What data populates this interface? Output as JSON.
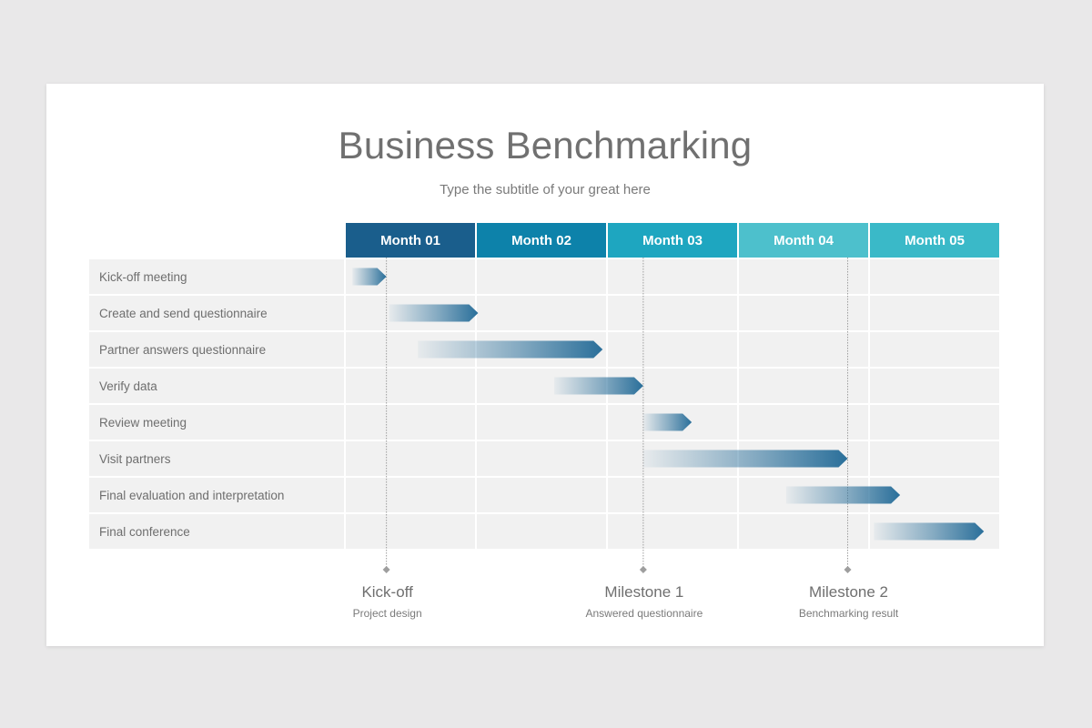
{
  "page": {
    "title": "Business Benchmarking",
    "subtitle": "Type the subtitle of your great here"
  },
  "colors": {
    "background": "#e9e8e9",
    "slide": "#ffffff",
    "row_fill": "#f1f1f1",
    "bar_end": "#2a6f9a",
    "milestone_line": "#9e9e9e",
    "month_colors": [
      "#1a5e8c",
      "#0d82aa",
      "#1ea6c0",
      "#4dc0cc",
      "#3ab9c8"
    ]
  },
  "chart_data": {
    "type": "gantt",
    "title": "Business Benchmarking",
    "subtitle": "Type the subtitle of your great here",
    "x_unit": "month",
    "x_range": [
      0,
      5
    ],
    "periods": [
      "Month 01",
      "Month 02",
      "Month 03",
      "Month 04",
      "Month 05"
    ],
    "tasks": [
      {
        "name": "Kick-off meeting",
        "start": 0.05,
        "end": 0.31
      },
      {
        "name": "Create and send questionnaire",
        "start": 0.33,
        "end": 1.01
      },
      {
        "name": "Partner answers questionnaire",
        "start": 0.55,
        "end": 1.96
      },
      {
        "name": "Verify data",
        "start": 1.59,
        "end": 2.27
      },
      {
        "name": "Review meeting",
        "start": 2.27,
        "end": 2.64
      },
      {
        "name": "Visit partners",
        "start": 2.27,
        "end": 3.83
      },
      {
        "name": "Final evaluation and interpretation",
        "start": 3.36,
        "end": 4.23
      },
      {
        "name": "Final conference",
        "start": 4.03,
        "end": 4.87
      }
    ],
    "milestones": [
      {
        "label": "Kick-off",
        "sublabel": "Project design",
        "x": 0.31
      },
      {
        "label": "Milestone 1",
        "sublabel": "Answered questionnaire",
        "x": 2.27
      },
      {
        "label": "Milestone 2",
        "sublabel": "Benchmarking result",
        "x": 3.83
      }
    ],
    "grid": true
  }
}
